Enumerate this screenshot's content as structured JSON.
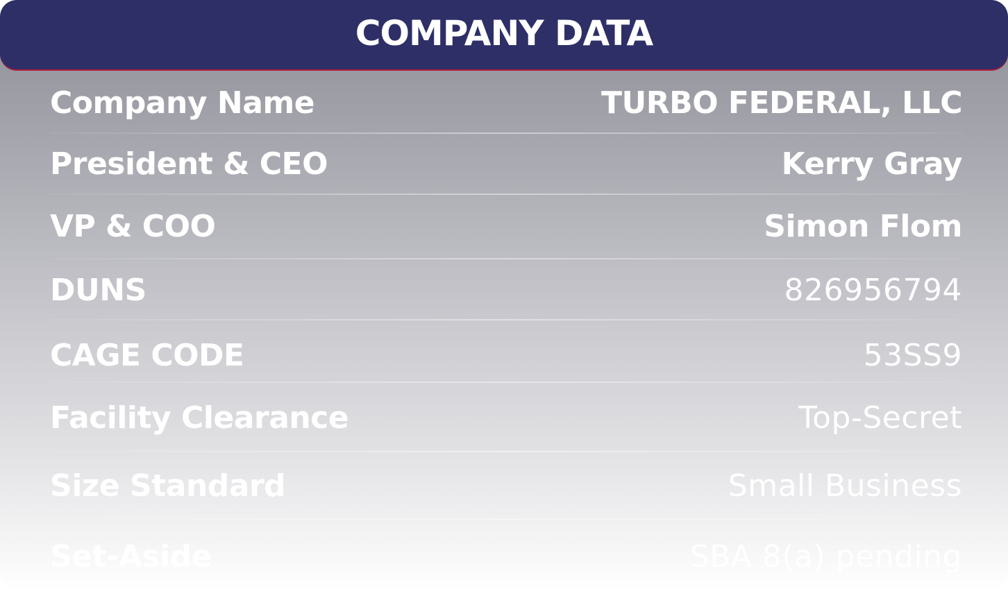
{
  "header": {
    "title": "COMPANY DATA"
  },
  "rows": [
    {
      "label": "Company Name",
      "value": "TURBO FEDERAL, LLC"
    },
    {
      "label": "President & CEO",
      "value": "Kerry Gray"
    },
    {
      "label": "VP & COO",
      "value": "Simon Flom"
    },
    {
      "label": "DUNS",
      "value": "826956794"
    },
    {
      "label": "CAGE CODE",
      "value": "53SS9"
    },
    {
      "label": "Facility Clearance",
      "value": "Top-Secret"
    },
    {
      "label": "Size Standard",
      "value": "Small Business"
    },
    {
      "label": "Set-Aside",
      "value": "SBA 8(a) pending"
    }
  ],
  "colors": {
    "header_bg": "#2e2f67",
    "header_border": "#b01b3a",
    "text": "#ffffff"
  }
}
